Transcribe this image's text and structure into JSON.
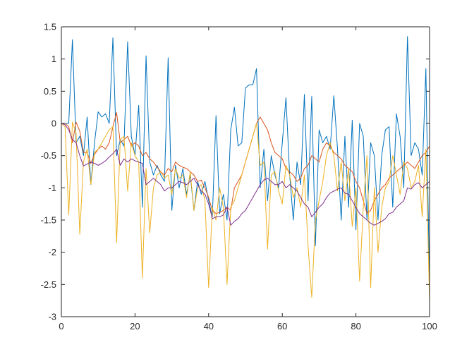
{
  "chart_data": {
    "type": "line",
    "title": "",
    "xlabel": "",
    "ylabel": "",
    "xlim": [
      0,
      100
    ],
    "ylim": [
      -3,
      1.5
    ],
    "grid": false,
    "box": true,
    "legend": null,
    "xticks": [
      0,
      20,
      40,
      60,
      80,
      100
    ],
    "yticks": [
      1.5,
      1,
      0.5,
      0,
      -0.5,
      -1,
      -1.5,
      -2,
      -2.5,
      -3
    ],
    "xtick_labels": [
      "0",
      "20",
      "40",
      "60",
      "80",
      "100"
    ],
    "ytick_labels": [
      "1.5",
      "1",
      "0.5",
      "0",
      "-0.5",
      "-1",
      "-1.5",
      "-2",
      "-2.5",
      "-3"
    ],
    "x": [
      0,
      1,
      2,
      3,
      4,
      5,
      6,
      7,
      8,
      9,
      10,
      11,
      12,
      13,
      14,
      15,
      16,
      17,
      18,
      19,
      20,
      21,
      22,
      23,
      24,
      25,
      26,
      27,
      28,
      29,
      30,
      31,
      32,
      33,
      34,
      35,
      36,
      37,
      38,
      39,
      40,
      41,
      42,
      43,
      44,
      45,
      46,
      47,
      48,
      49,
      50,
      51,
      52,
      53,
      54,
      55,
      56,
      57,
      58,
      59,
      60,
      61,
      62,
      63,
      64,
      65,
      66,
      67,
      68,
      69,
      70,
      71,
      72,
      73,
      74,
      75,
      76,
      77,
      78,
      79,
      80,
      81,
      82,
      83,
      84,
      85,
      86,
      87,
      88,
      89,
      90,
      91,
      92,
      93,
      94,
      95,
      96,
      97,
      98,
      99,
      100
    ],
    "series": [
      {
        "color": "#0072BD",
        "values": [
          0,
          0,
          0,
          1.3,
          -0.3,
          -0.2,
          -0.5,
          0.1,
          -0.95,
          -0.3,
          0.18,
          0.1,
          0.15,
          0,
          1.33,
          -0.5,
          -0.25,
          -0.35,
          1.27,
          -0.2,
          -0.5,
          0.28,
          -1.3,
          1.05,
          -0.6,
          -0.8,
          -0.65,
          -0.8,
          -0.9,
          1.02,
          -1.35,
          -0.65,
          -1.0,
          -0.7,
          -1.1,
          -0.8,
          -1.35,
          -0.9,
          -1.1,
          -0.9,
          -1.2,
          -1.45,
          0.12,
          -1.4,
          -1.1,
          -1.5,
          -0.1,
          0.25,
          -0.35,
          -0.3,
          0.55,
          0.6,
          0.6,
          0.85,
          -1.0,
          -0.4,
          -1.2,
          -0.5,
          -0.8,
          -1.0,
          -0.3,
          0.4,
          -0.8,
          -1.5,
          -0.6,
          -0.95,
          0.45,
          -1.2,
          0.42,
          -1.9,
          -0.1,
          -0.3,
          -0.2,
          -0.4,
          0.43,
          -0.4,
          -1.5,
          -0.2,
          -1.3,
          0.05,
          -1.65,
          0.0,
          -0.2,
          -1.5,
          -0.3,
          -0.5,
          -1.5,
          -0.5,
          -0.1,
          -0.05,
          -1.3,
          0.15,
          -0.2,
          -1.0,
          1.35,
          -0.5,
          -0.3,
          -0.4,
          -0.8,
          0.85,
          -2.6
        ]
      },
      {
        "color": "#D95319",
        "values": [
          0,
          0,
          -0.05,
          -0.3,
          0.02,
          -0.12,
          -0.45,
          -0.45,
          -0.62,
          -0.48,
          -0.4,
          -0.35,
          -0.4,
          -0.3,
          -0.05,
          0.17,
          -0.3,
          -0.25,
          -0.2,
          -0.35,
          -0.3,
          -0.35,
          -0.5,
          -0.45,
          -0.55,
          -0.6,
          -0.68,
          -0.75,
          -0.8,
          -0.7,
          -0.75,
          -0.6,
          -0.65,
          -0.68,
          -0.7,
          -0.75,
          -0.8,
          -0.9,
          -0.88,
          -1.0,
          -1.15,
          -1.35,
          -1.4,
          -1.38,
          -1.35,
          -1.3,
          -1.35,
          -1.0,
          -0.9,
          -0.8,
          -0.6,
          -0.4,
          -0.2,
          0.0,
          0.1,
          0.0,
          -0.1,
          -0.3,
          -0.45,
          -0.5,
          -0.55,
          -0.7,
          -0.75,
          -0.8,
          -0.9,
          -0.85,
          -0.7,
          -0.65,
          -0.5,
          -0.55,
          -0.6,
          -0.4,
          -0.3,
          -0.35,
          -0.45,
          -0.5,
          -0.55,
          -0.65,
          -0.7,
          -0.75,
          -0.9,
          -1.0,
          -1.2,
          -1.4,
          -1.35,
          -1.2,
          -1.1,
          -1.0,
          -0.95,
          -0.85,
          -0.8,
          -0.75,
          -0.7,
          -0.65,
          -0.6,
          -0.65,
          -0.7,
          -0.6,
          -0.5,
          -0.45,
          -0.35
        ]
      },
      {
        "color": "#EDB120",
        "values": [
          0,
          -0.05,
          -1.42,
          0.02,
          -0.15,
          -1.72,
          -0.6,
          -0.4,
          -0.95,
          -0.45,
          -0.4,
          -0.3,
          -0.2,
          -0.1,
          -0.05,
          -1.85,
          -0.25,
          -0.2,
          -1.05,
          -0.3,
          -0.5,
          -0.6,
          -2.4,
          -0.7,
          -1.7,
          -1.0,
          -0.8,
          -0.75,
          -0.85,
          -0.8,
          -1.1,
          -0.7,
          -0.85,
          -0.8,
          -1.15,
          -0.75,
          -1.35,
          -1.0,
          -0.95,
          -1.2,
          -2.55,
          -1.3,
          -1.5,
          -1.0,
          -1.3,
          -2.5,
          -1.3,
          -1.2,
          -1.0,
          -0.8,
          -0.6,
          -0.4,
          -0.2,
          0.0,
          -0.65,
          -0.6,
          -1.95,
          -0.8,
          -0.75,
          -1.05,
          -1.25,
          -0.65,
          -0.8,
          -1.15,
          -1.0,
          -1.3,
          -0.8,
          -1.9,
          -2.7,
          -1.5,
          -1.2,
          -0.9,
          -0.5,
          -0.3,
          -0.5,
          -1.05,
          -0.6,
          -1.2,
          -0.7,
          -1.6,
          -1.0,
          -2.45,
          -1.3,
          -0.5,
          -2.55,
          -1.0,
          -2.0,
          -1.3,
          -1.0,
          -0.9,
          -0.5,
          -0.8,
          -1.1,
          -0.6,
          -0.7,
          -1.0,
          -0.9,
          -0.65,
          -1.45,
          -0.4,
          -2.8
        ]
      },
      {
        "color": "#7E2F8E",
        "values": [
          0,
          -0.02,
          -0.1,
          -0.25,
          -0.3,
          -0.5,
          -0.66,
          -0.63,
          -0.6,
          -0.62,
          -0.65,
          -0.62,
          -0.58,
          -0.52,
          -0.47,
          -0.4,
          -0.65,
          -0.55,
          -0.6,
          -0.55,
          -0.58,
          -0.6,
          -0.62,
          -0.95,
          -0.9,
          -0.85,
          -0.9,
          -0.95,
          -1.05,
          -1.0,
          -1.0,
          -0.95,
          -0.9,
          -0.92,
          -0.95,
          -0.9,
          -0.85,
          -0.95,
          -1.05,
          -1.1,
          -1.25,
          -1.48,
          -1.45,
          -1.45,
          -1.42,
          -1.3,
          -1.58,
          -1.52,
          -1.48,
          -1.4,
          -1.35,
          -1.25,
          -1.15,
          -1.05,
          -0.95,
          -0.88,
          -0.85,
          -0.9,
          -0.95,
          -0.95,
          -0.9,
          -1.0,
          -0.95,
          -1.0,
          -1.05,
          -1.15,
          -1.25,
          -1.3,
          -1.45,
          -1.38,
          -1.3,
          -1.25,
          -1.15,
          -1.08,
          -1.05,
          -1.02,
          -1.0,
          -1.08,
          -1.1,
          -1.2,
          -1.3,
          -1.4,
          -1.45,
          -1.5,
          -1.55,
          -1.58,
          -1.55,
          -1.52,
          -1.48,
          -1.4,
          -1.38,
          -1.3,
          -1.25,
          -1.2,
          -1.0,
          -1.02,
          -0.95,
          -0.92,
          -1.0,
          -0.95,
          -0.9
        ]
      }
    ]
  }
}
